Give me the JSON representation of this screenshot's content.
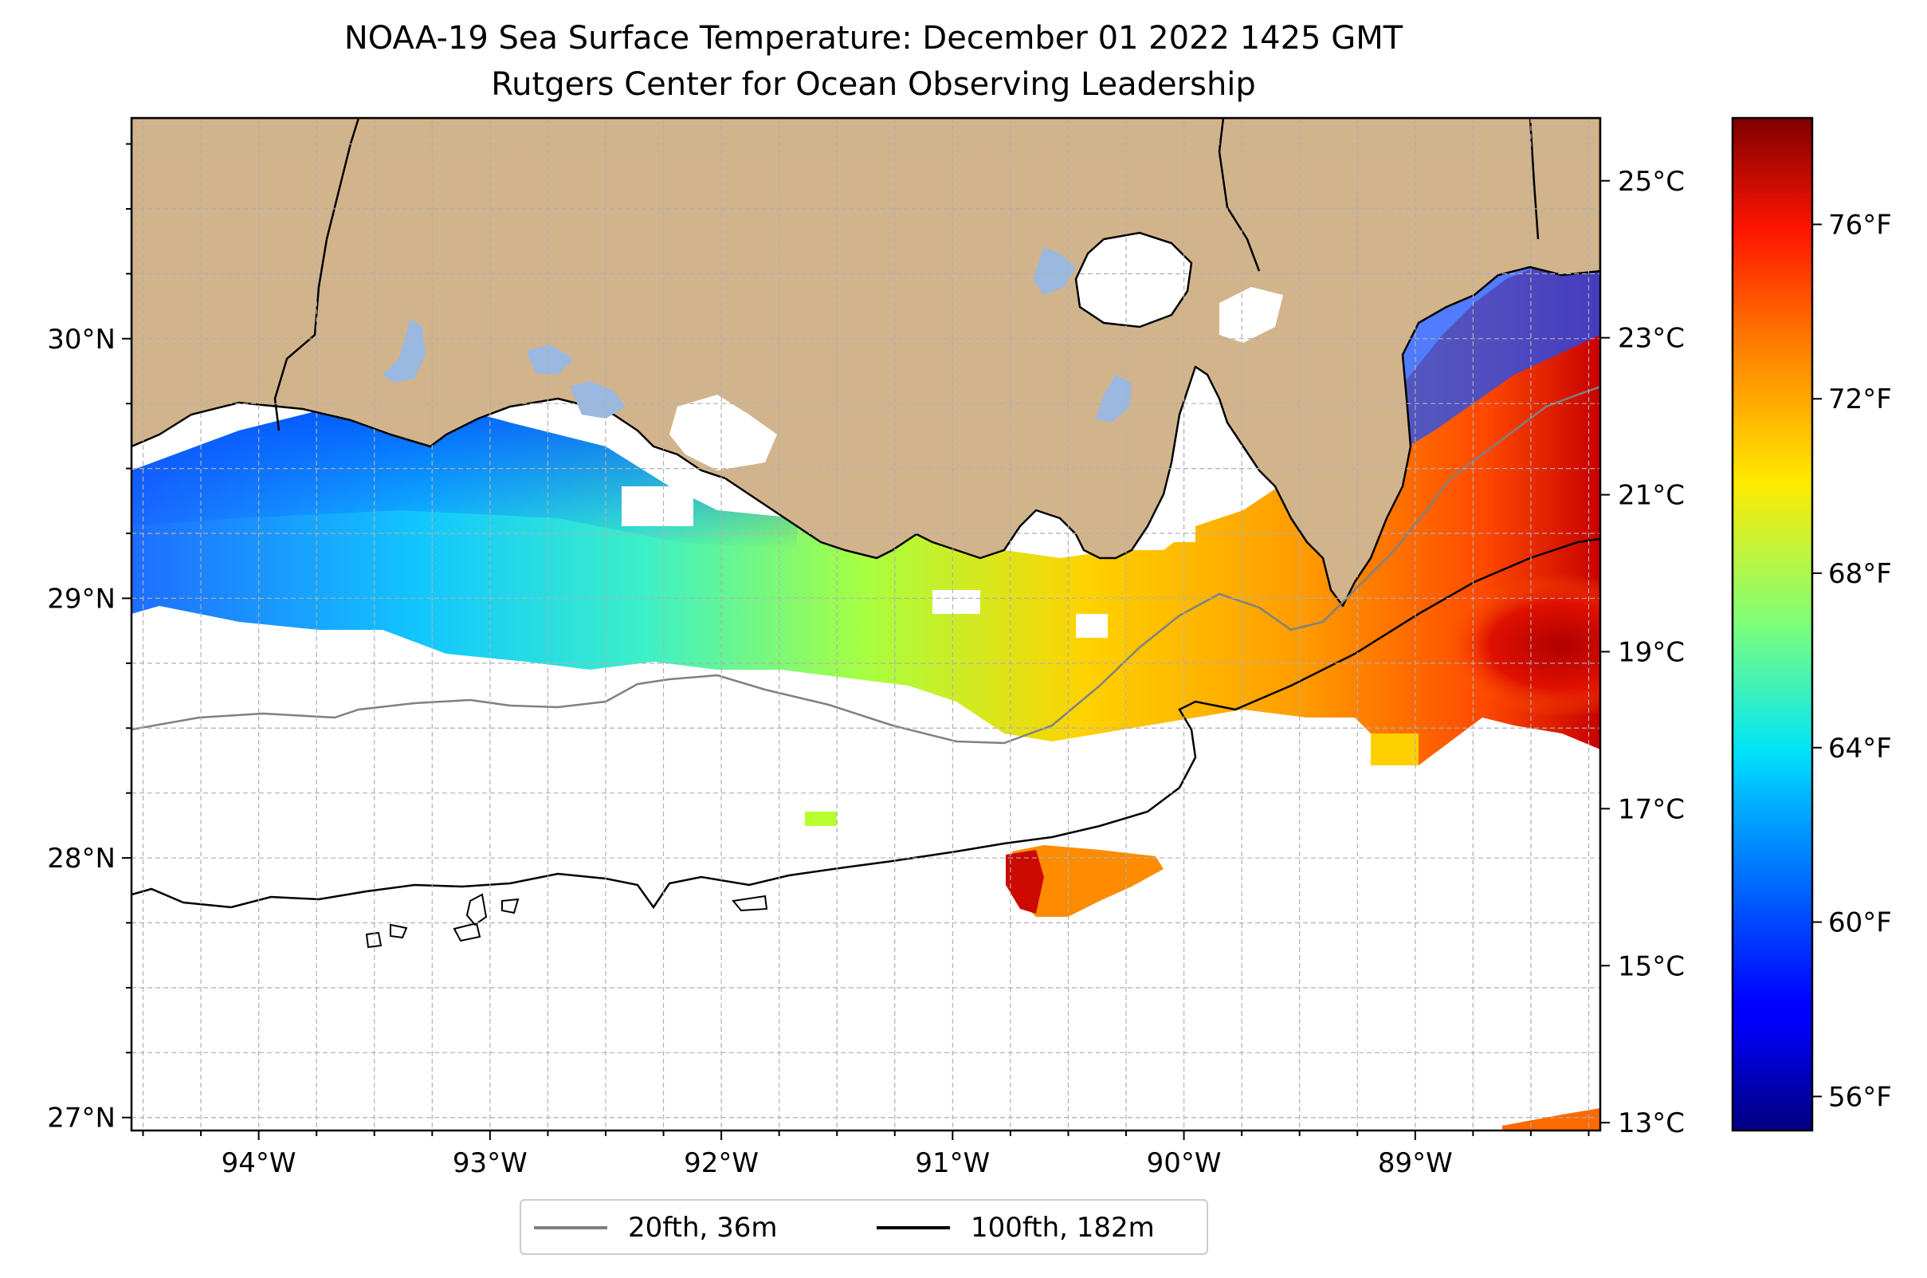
{
  "title": {
    "line1": "NOAA-19 Sea Surface Temperature: December 01 2022 1425 GMT",
    "line2": "Rutgers Center for Ocean Observing Leadership"
  },
  "map": {
    "lon_range": [
      -94.55,
      -88.2
    ],
    "lat_range": [
      26.95,
      30.85
    ],
    "lon_ticks": [
      {
        "value": -94,
        "label": "94°W"
      },
      {
        "value": -93,
        "label": "93°W"
      },
      {
        "value": -92,
        "label": "92°W"
      },
      {
        "value": -91,
        "label": "91°W"
      },
      {
        "value": -90,
        "label": "90°W"
      },
      {
        "value": -89,
        "label": "89°W"
      }
    ],
    "lat_ticks": [
      {
        "value": 30,
        "label": "30°N"
      },
      {
        "value": 29,
        "label": "29°N"
      },
      {
        "value": 28,
        "label": "28°N"
      },
      {
        "value": 27,
        "label": "27°N"
      }
    ],
    "grid": true,
    "colors": {
      "land": "#d2b48c",
      "lakes": "#9ab8e0",
      "no_data": "#ffffff",
      "isobath_20fth": "#808080",
      "isobath_100fth": "#000000",
      "grid": "#b0b0b0"
    }
  },
  "colorbar": {
    "colormap": "jet",
    "celsius_ticks": [
      {
        "value": 25,
        "label": "25°C"
      },
      {
        "value": 23,
        "label": "23°C"
      },
      {
        "value": 21,
        "label": "21°C"
      },
      {
        "value": 19,
        "label": "19°C"
      },
      {
        "value": 17,
        "label": "17°C"
      },
      {
        "value": 15,
        "label": "15°C"
      },
      {
        "value": 13,
        "label": "13°C"
      }
    ],
    "fahrenheit_ticks": [
      {
        "value": 76,
        "label": "76°F"
      },
      {
        "value": 72,
        "label": "72°F"
      },
      {
        "value": 68,
        "label": "68°F"
      },
      {
        "value": 64,
        "label": "64°F"
      },
      {
        "value": 60,
        "label": "60°F"
      },
      {
        "value": 56,
        "label": "56°F"
      }
    ],
    "range_c": [
      12.9,
      25.8
    ]
  },
  "legend": {
    "items": [
      {
        "label": "20fth, 36m",
        "color": "#808080"
      },
      {
        "label": "100fth, 182m",
        "color": "#000000"
      }
    ]
  }
}
